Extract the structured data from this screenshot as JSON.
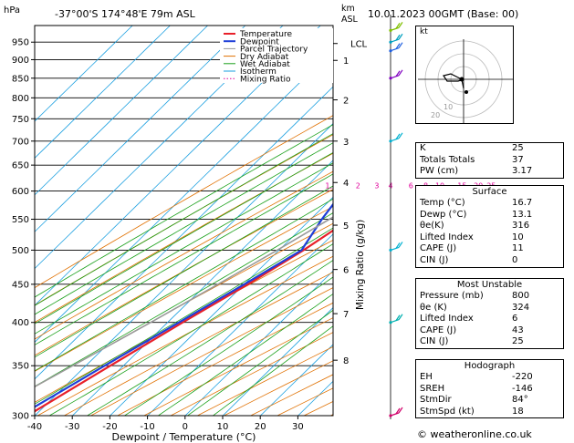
{
  "chart_data": {
    "type": "skew-t",
    "title": "-37°00'S  174°48'E  79m  ASL",
    "date_label": "10.01.2023 00GMT (Base: 00)",
    "pressure_axis_label": "hPa",
    "height_axis_label": "km\nASL",
    "mixing_axis_label": "Mixing Ratio (g/kg)",
    "xlabel": "Dewpoint / Temperature (°C)",
    "pressure_ticks": [
      300,
      350,
      400,
      450,
      500,
      550,
      600,
      650,
      700,
      750,
      800,
      850,
      900,
      950
    ],
    "temp_ticks": [
      -40,
      -30,
      -20,
      -10,
      0,
      10,
      20,
      30
    ],
    "km_ticks": [
      {
        "km": "8",
        "p": 356
      },
      {
        "km": "7",
        "p": 411
      },
      {
        "km": "6",
        "p": 471
      },
      {
        "km": "5",
        "p": 540
      },
      {
        "km": "4",
        "p": 616
      },
      {
        "km": "3",
        "p": 700
      },
      {
        "km": "2",
        "p": 795
      },
      {
        "km": "1",
        "p": 898
      }
    ],
    "lcl": {
      "label": "LCL",
      "p": 946
    },
    "mixing_ratio_labels": [
      {
        "label": "1",
        "w": 1
      },
      {
        "label": "2",
        "w": 2
      },
      {
        "label": "3",
        "w": 3
      },
      {
        "label": "4",
        "w": 4
      },
      {
        "label": "6",
        "w": 6
      },
      {
        "label": "8",
        "w": 8
      },
      {
        "label": "10",
        "w": 10
      },
      {
        "label": "15",
        "w": 15
      },
      {
        "label": "20",
        "w": 20
      },
      {
        "label": "25",
        "w": 25
      }
    ],
    "legend": [
      "Temperature",
      "Dewpoint",
      "Parcel Trajectory",
      "Dry Adiabat",
      "Wet Adiabat",
      "Isotherm",
      "Mixing Ratio"
    ],
    "series": [
      {
        "name": "Temperature",
        "color": "#e8202a",
        "points": [
          [
            985,
            17.5
          ],
          [
            950,
            15.0
          ],
          [
            925,
            13.4
          ],
          [
            900,
            13.0
          ],
          [
            850,
            12.0
          ],
          [
            800,
            9.0
          ],
          [
            750,
            5.5
          ],
          [
            700,
            2.0
          ],
          [
            650,
            -1.0
          ],
          [
            600,
            -3.5
          ],
          [
            550,
            -9.5
          ],
          [
            500,
            -13.5
          ],
          [
            450,
            -19.0
          ],
          [
            400,
            -26.0
          ],
          [
            350,
            -33.5
          ],
          [
            300,
            -42.0
          ]
        ]
      },
      {
        "name": "Dewpoint",
        "color": "#1f3fd8",
        "points": [
          [
            985,
            13.5
          ],
          [
            950,
            13.0
          ],
          [
            925,
            12.0
          ],
          [
            900,
            11.5
          ],
          [
            850,
            10.5
          ],
          [
            800,
            8.0
          ],
          [
            750,
            3.0
          ],
          [
            700,
            -3.0
          ],
          [
            650,
            -20.0
          ],
          [
            600,
            -19.0
          ],
          [
            550,
            -17.0
          ],
          [
            500,
            -14.0
          ],
          [
            450,
            -20.0
          ],
          [
            400,
            -27.0
          ],
          [
            350,
            -35.0
          ],
          [
            300,
            -44.0
          ]
        ]
      },
      {
        "name": "Parcel Trajectory",
        "color": "#9a9a9a",
        "points": [
          [
            985,
            16.7
          ],
          [
            946,
            13.2
          ],
          [
            900,
            11.0
          ],
          [
            850,
            8.5
          ],
          [
            800,
            5.5
          ],
          [
            750,
            2.0
          ],
          [
            700,
            -1.5
          ],
          [
            650,
            -5.5
          ],
          [
            600,
            -10.0
          ],
          [
            550,
            -15.0
          ],
          [
            500,
            -20.5
          ],
          [
            450,
            -27.0
          ],
          [
            400,
            -34.5
          ],
          [
            350,
            -43.5
          ],
          [
            300,
            -54.0
          ]
        ]
      }
    ],
    "line_colors": {
      "dry_adiabat": "#e07000",
      "wet_adiabat": "#1aa01a",
      "isotherm": "#1a9fe0",
      "mixing_ratio": "#e0009a"
    },
    "wind_barbs": [
      {
        "p": 300,
        "color": "#d0006a"
      },
      {
        "p": 400,
        "color": "#00b0b0"
      },
      {
        "p": 500,
        "color": "#00b0d0"
      },
      {
        "p": 700,
        "color": "#00b0d0"
      },
      {
        "p": 850,
        "color": "#8000c0"
      },
      {
        "p": 925,
        "color": "#2060e0"
      },
      {
        "p": 950,
        "color": "#00a0c0"
      },
      {
        "p": 985,
        "color": "#80c000"
      }
    ]
  },
  "hodograph": {
    "label": "kt",
    "ring_labels": [
      "10",
      "20"
    ]
  },
  "indices": [
    {
      "label": "K",
      "value": "25"
    },
    {
      "label": "Totals Totals",
      "value": "37"
    },
    {
      "label": "PW (cm)",
      "value": "3.17"
    }
  ],
  "surface": {
    "title": "Surface",
    "rows": [
      {
        "label": "Temp (°C)",
        "value": "16.7"
      },
      {
        "label": "Dewp (°C)",
        "value": "13.1"
      },
      {
        "label": "θe(K)",
        "value": "316"
      },
      {
        "label": "Lifted Index",
        "value": "10"
      },
      {
        "label": "CAPE (J)",
        "value": "11"
      },
      {
        "label": "CIN (J)",
        "value": "0"
      }
    ]
  },
  "most_unstable": {
    "title": "Most Unstable",
    "rows": [
      {
        "label": "Pressure (mb)",
        "value": "800"
      },
      {
        "label": "θe (K)",
        "value": "324"
      },
      {
        "label": "Lifted Index",
        "value": "6"
      },
      {
        "label": "CAPE (J)",
        "value": "43"
      },
      {
        "label": "CIN (J)",
        "value": "25"
      }
    ]
  },
  "hodo_table": {
    "title": "Hodograph",
    "rows": [
      {
        "label": "EH",
        "value": "-220"
      },
      {
        "label": "SREH",
        "value": "-146"
      },
      {
        "label": "StmDir",
        "value": "84°"
      },
      {
        "label": "StmSpd (kt)",
        "value": "18"
      }
    ]
  },
  "copyright": "© weatheronline.co.uk"
}
